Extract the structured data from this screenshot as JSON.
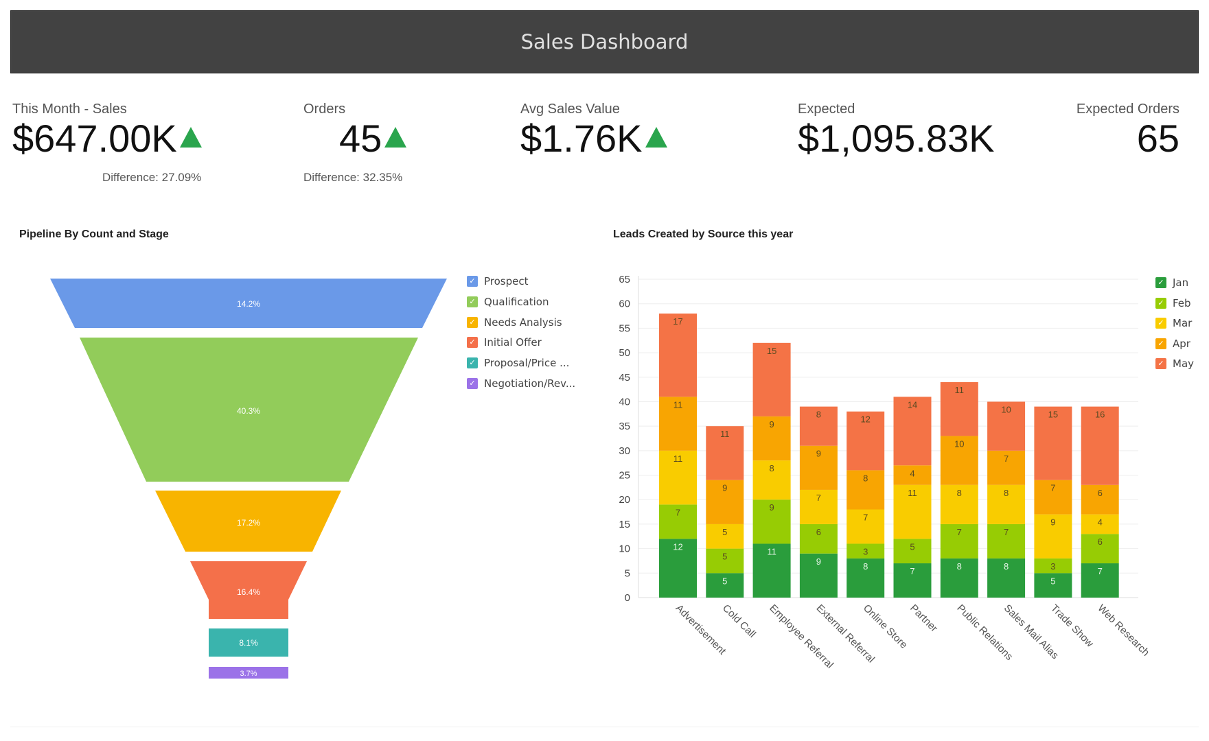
{
  "header": {
    "title": "Sales Dashboard"
  },
  "kpis": [
    {
      "label": "This Month - Sales",
      "value": "$647.00K",
      "trend": "up",
      "difference": "Difference: 27.09%"
    },
    {
      "label": "Orders",
      "value": "45",
      "trend": "up",
      "difference": "Difference: 32.35%"
    },
    {
      "label": "Avg Sales Value",
      "value": "$1.76K",
      "trend": "up"
    },
    {
      "label": "Expected",
      "value": "$1,095.83K"
    },
    {
      "label": "Expected Orders",
      "value": "65"
    }
  ],
  "colors": {
    "trend_up": "#2aa54d",
    "header_bg": "#424242"
  },
  "pipeline": {
    "title": "Pipeline By Count and Stage",
    "chart_data": {
      "type": "funnel",
      "stages": [
        {
          "name": "Prospect",
          "value_label": "14.2%",
          "value": 14.2,
          "color": "#6a99e8"
        },
        {
          "name": "Qualification",
          "value_label": "40.3%",
          "value": 40.3,
          "color": "#92cc5a"
        },
        {
          "name": "Needs Analysis",
          "value_label": "17.2%",
          "value": 17.2,
          "color": "#f8b400"
        },
        {
          "name": "Initial Offer",
          "value_label": "16.4%",
          "value": 16.4,
          "color": "#f4704a"
        },
        {
          "name": "Proposal/Price ...",
          "value_label": "8.1%",
          "value": 8.1,
          "color": "#3ab4ad"
        },
        {
          "name": "Negotiation/Rev...",
          "value_label": "3.7%",
          "value": 3.7,
          "color": "#9b72e8"
        }
      ],
      "legend_position": "right"
    }
  },
  "leads": {
    "title": "Leads Created by Source this year",
    "chart_data": {
      "type": "bar",
      "stacked": true,
      "categories": [
        "Advertisement",
        "Cold Call",
        "Employee Referral",
        "External Referral",
        "Online Store",
        "Partner",
        "Public Relations",
        "Sales Mail Alias",
        "Trade Show",
        "Web Research"
      ],
      "series": [
        {
          "name": "Jan",
          "color": "#2a9d3c",
          "values": [
            12,
            5,
            11,
            9,
            8,
            7,
            8,
            8,
            5,
            7
          ]
        },
        {
          "name": "Feb",
          "color": "#97cc04",
          "values": [
            7,
            5,
            9,
            6,
            3,
            5,
            7,
            7,
            3,
            6
          ]
        },
        {
          "name": "Mar",
          "color": "#f9cc00",
          "values": [
            11,
            5,
            8,
            7,
            7,
            11,
            8,
            8,
            9,
            4
          ]
        },
        {
          "name": "Apr",
          "color": "#f8a502",
          "values": [
            11,
            9,
            9,
            9,
            8,
            4,
            10,
            7,
            7,
            6
          ]
        },
        {
          "name": "May",
          "color": "#f47346",
          "values": [
            17,
            11,
            15,
            8,
            12,
            14,
            11,
            10,
            15,
            16
          ]
        }
      ],
      "ylim": [
        0,
        65
      ],
      "yticks": [
        "0",
        "5",
        "10",
        "15",
        "20",
        "25",
        "30",
        "35",
        "40",
        "45",
        "50",
        "55",
        "60",
        "65"
      ],
      "grid": true,
      "legend_position": "right"
    }
  }
}
